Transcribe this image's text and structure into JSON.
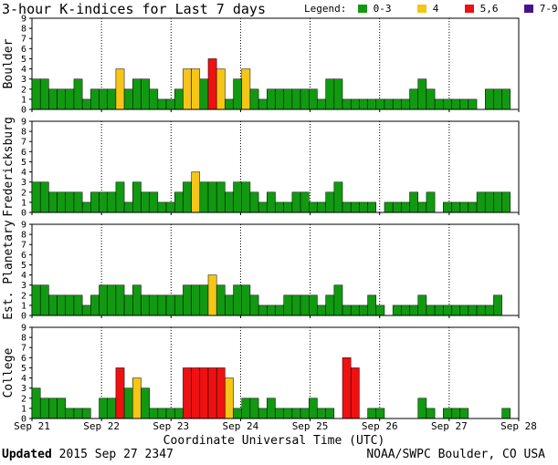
{
  "title": "3-hour K-indices for Last 7 days",
  "legend": {
    "label": "Legend:",
    "items": [
      {
        "label": "0-3",
        "color": "#119911"
      },
      {
        "label": "4",
        "color": "#f5c518"
      },
      {
        "label": "5,6",
        "color": "#ee1111"
      },
      {
        "label": "7-9",
        "color": "#44158a"
      }
    ]
  },
  "xtitle": "Coordinate Universal Time (UTC)",
  "footer": {
    "updated_label": "Updated",
    "updated_value": "2015 Sep 27 2347",
    "source": "NOAA/SWPC Boulder, CO USA"
  },
  "chart_data": [
    {
      "type": "bar",
      "ylabel": "Boulder",
      "ylim": [
        0,
        9
      ],
      "yticks": [
        "0",
        "1",
        "2",
        "3",
        "4",
        "5",
        "6",
        "7",
        "8",
        "9"
      ],
      "xticks": [
        "Sep 21",
        "Sep 22",
        "Sep 23",
        "Sep 24",
        "Sep 25",
        "Sep 26",
        "Sep 27",
        "Sep 28"
      ],
      "values": [
        3,
        3,
        2,
        2,
        2,
        3,
        1,
        2,
        2,
        2,
        4,
        2,
        3,
        3,
        2,
        1,
        1,
        2,
        4,
        4,
        3,
        5,
        4,
        1,
        3,
        4,
        2,
        1,
        2,
        2,
        2,
        2,
        2,
        2,
        1,
        3,
        3,
        1,
        1,
        1,
        1,
        1,
        1,
        1,
        1,
        2,
        3,
        2,
        1,
        1,
        1,
        1,
        1,
        0,
        2,
        2,
        2,
        0
      ]
    },
    {
      "type": "bar",
      "ylabel": "Fredericksburg",
      "ylim": [
        0,
        9
      ],
      "yticks": [
        "0",
        "1",
        "2",
        "3",
        "4",
        "5",
        "6",
        "7",
        "8",
        "9"
      ],
      "xticks": [
        "Sep 21",
        "Sep 22",
        "Sep 23",
        "Sep 24",
        "Sep 25",
        "Sep 26",
        "Sep 27",
        "Sep 28"
      ],
      "values": [
        3,
        3,
        2,
        2,
        2,
        2,
        1,
        2,
        2,
        2,
        3,
        1,
        3,
        2,
        2,
        1,
        1,
        2,
        3,
        4,
        3,
        3,
        3,
        2,
        3,
        3,
        2,
        1,
        2,
        1,
        1,
        2,
        2,
        1,
        1,
        2,
        3,
        1,
        1,
        1,
        1,
        0,
        1,
        1,
        1,
        2,
        1,
        2,
        0,
        1,
        1,
        1,
        1,
        2,
        2,
        2,
        2,
        0
      ]
    },
    {
      "type": "bar",
      "ylabel": "Est. Planetary",
      "ylim": [
        0,
        9
      ],
      "yticks": [
        "0",
        "1",
        "2",
        "3",
        "4",
        "5",
        "6",
        "7",
        "8",
        "9"
      ],
      "xticks": [
        "Sep 21",
        "Sep 22",
        "Sep 23",
        "Sep 24",
        "Sep 25",
        "Sep 26",
        "Sep 27",
        "Sep 28"
      ],
      "values": [
        3,
        3,
        2,
        2,
        2,
        2,
        1,
        2,
        3,
        3,
        3,
        2,
        3,
        2,
        2,
        2,
        2,
        2,
        3,
        3,
        3,
        4,
        3,
        2,
        3,
        3,
        2,
        1,
        1,
        1,
        2,
        2,
        2,
        2,
        1,
        2,
        3,
        1,
        1,
        1,
        2,
        1,
        0,
        1,
        1,
        1,
        2,
        1,
        1,
        1,
        1,
        1,
        1,
        1,
        1,
        2,
        0,
        0
      ]
    },
    {
      "type": "bar",
      "ylabel": "College",
      "ylim": [
        0,
        9
      ],
      "yticks": [
        "0",
        "1",
        "2",
        "3",
        "4",
        "5",
        "6",
        "7",
        "8",
        "9"
      ],
      "xticks": [
        "Sep 21",
        "Sep 22",
        "Sep 23",
        "Sep 24",
        "Sep 25",
        "Sep 26",
        "Sep 27",
        "Sep 28"
      ],
      "values": [
        3,
        2,
        2,
        2,
        1,
        1,
        1,
        0,
        2,
        2,
        5,
        3,
        4,
        3,
        1,
        1,
        1,
        1,
        5,
        5,
        5,
        5,
        5,
        4,
        1,
        2,
        2,
        1,
        2,
        1,
        1,
        1,
        1,
        2,
        1,
        1,
        0,
        6,
        5,
        0,
        1,
        1,
        0,
        0,
        0,
        0,
        2,
        1,
        0,
        1,
        1,
        1,
        0,
        0,
        0,
        0,
        1,
        0
      ]
    }
  ]
}
